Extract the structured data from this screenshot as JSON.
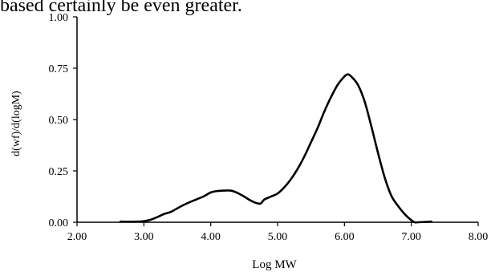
{
  "page": {
    "top_text": "based certainly be even greater."
  },
  "chart_data": {
    "type": "line",
    "title": "",
    "xlabel": "Log MW",
    "ylabel": "d(wf)/d(logM)",
    "xlim": [
      2.0,
      8.0
    ],
    "ylim": [
      0.0,
      1.0
    ],
    "xticks": [
      2.0,
      3.0,
      4.0,
      5.0,
      6.0,
      7.0,
      8.0
    ],
    "xtick_labels": [
      "2.00",
      "3.00",
      "4.00",
      "5.00",
      "6.00",
      "7.00",
      "8.00"
    ],
    "yticks": [
      0.0,
      0.25,
      0.5,
      0.75,
      1.0
    ],
    "ytick_labels": [
      "0.00",
      "0.25",
      "0.50",
      "0.75",
      "1.00"
    ],
    "grid": false,
    "legend": "none",
    "series": [
      {
        "color": "#000000",
        "x": [
          2.65,
          2.9,
          3.0,
          3.1,
          3.2,
          3.3,
          3.4,
          3.5,
          3.6,
          3.7,
          3.8,
          3.9,
          4.0,
          4.1,
          4.2,
          4.3,
          4.4,
          4.5,
          4.6,
          4.7,
          4.75,
          4.8,
          4.9,
          5.0,
          5.1,
          5.2,
          5.3,
          5.4,
          5.5,
          5.6,
          5.7,
          5.8,
          5.9,
          6.0,
          6.05,
          6.1,
          6.2,
          6.3,
          6.4,
          6.5,
          6.6,
          6.7,
          6.8,
          6.9,
          7.0,
          7.05,
          7.1,
          7.3
        ],
        "y": [
          0.003,
          0.003,
          0.005,
          0.012,
          0.025,
          0.04,
          0.05,
          0.068,
          0.085,
          0.1,
          0.113,
          0.127,
          0.145,
          0.152,
          0.154,
          0.154,
          0.143,
          0.125,
          0.105,
          0.092,
          0.092,
          0.11,
          0.125,
          0.14,
          0.17,
          0.21,
          0.26,
          0.32,
          0.39,
          0.46,
          0.54,
          0.61,
          0.67,
          0.71,
          0.72,
          0.71,
          0.67,
          0.59,
          0.47,
          0.34,
          0.22,
          0.13,
          0.08,
          0.04,
          0.01,
          0.0,
          0.0,
          0.003
        ]
      }
    ]
  }
}
